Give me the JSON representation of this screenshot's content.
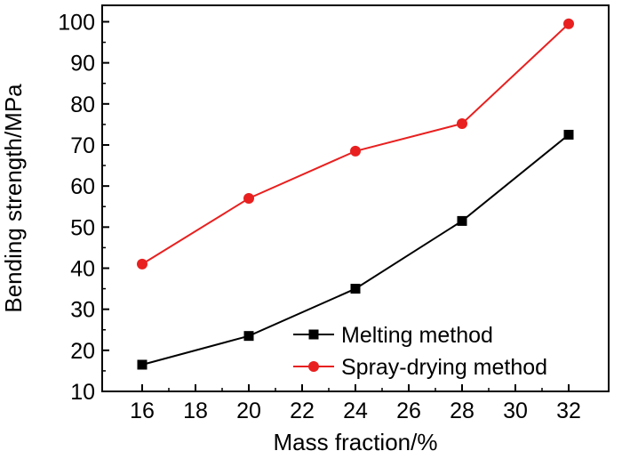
{
  "chart_data": {
    "type": "line",
    "xlabel": "Mass fraction/%",
    "ylabel": "Bending strength/MPa",
    "xlim": [
      14.5,
      33.5
    ],
    "ylim": [
      10,
      104
    ],
    "x_ticks": [
      16,
      18,
      20,
      22,
      24,
      26,
      28,
      30,
      32
    ],
    "y_ticks": [
      10,
      20,
      30,
      40,
      50,
      60,
      70,
      80,
      90,
      100
    ],
    "x": [
      16,
      20,
      24,
      28,
      32
    ],
    "series": [
      {
        "name": "Melting method",
        "values": [
          16.5,
          23.5,
          35,
          51.5,
          72.5
        ],
        "color": "#000000",
        "marker": "square"
      },
      {
        "name": "Spray-drying method",
        "values": [
          41,
          57,
          68.5,
          75.2,
          99.5
        ],
        "color": "#e8201f",
        "marker": "circle"
      }
    ],
    "legend_position": "bottom-right",
    "grid": false
  }
}
